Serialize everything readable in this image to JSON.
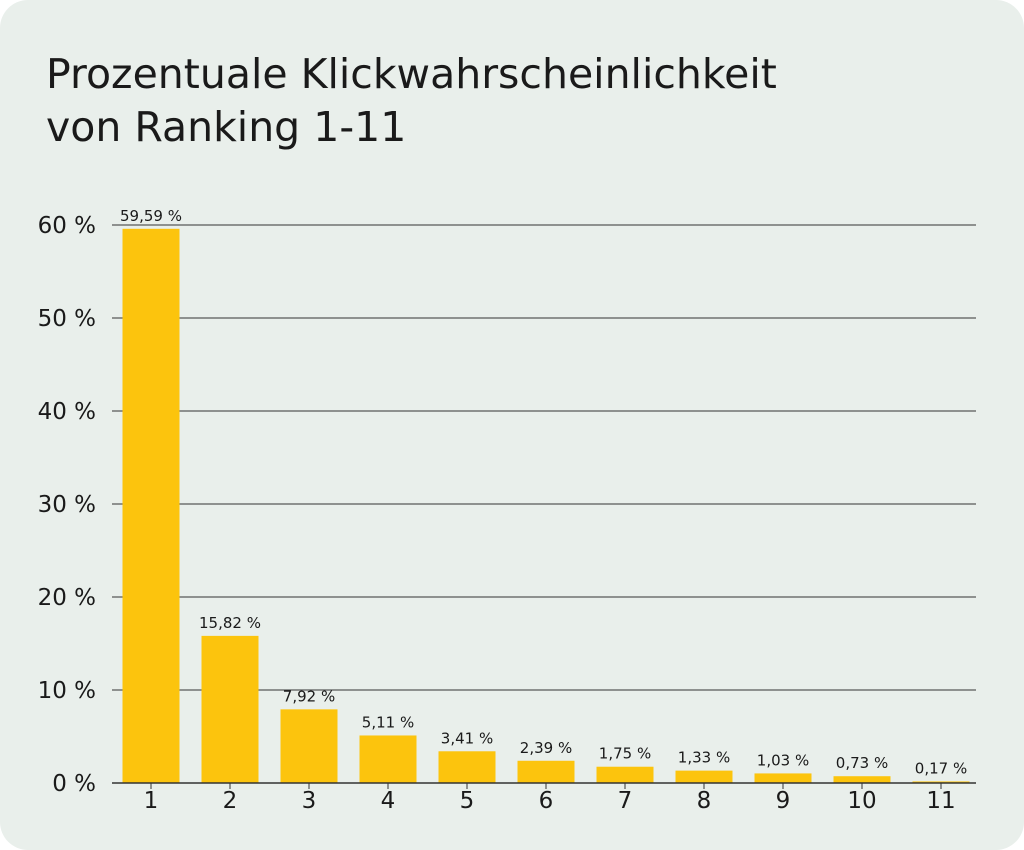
{
  "chart_data": {
    "type": "bar",
    "title_line1": "Prozentuale Klickwahrscheinlichkeit",
    "title_line2": "von Ranking 1-11",
    "xlabel": "",
    "ylabel": "",
    "categories": [
      "1",
      "2",
      "3",
      "4",
      "5",
      "6",
      "7",
      "8",
      "9",
      "10",
      "11"
    ],
    "values": [
      59.59,
      15.82,
      7.92,
      5.11,
      3.41,
      2.39,
      1.75,
      1.33,
      1.03,
      0.73,
      0.17
    ],
    "value_labels": [
      "59,59 %",
      "15,82 %",
      "7,92 %",
      "5,11 %",
      "3,41 %",
      "2,39 %",
      "1,75 %",
      "1,33 %",
      "1,03 %",
      "0,73 %",
      "0,17 %"
    ],
    "ylim": [
      0,
      60
    ],
    "yticks": [
      0,
      10,
      20,
      30,
      40,
      50,
      60
    ],
    "ytick_labels": [
      "0 %",
      "10 %",
      "20 %",
      "30 %",
      "40 %",
      "50 %",
      "60 %"
    ],
    "grid": true,
    "colors": {
      "bar": "#fcc40d",
      "grid": "#333333",
      "background": "#e9efeb",
      "text": "#1a1a1a"
    }
  }
}
